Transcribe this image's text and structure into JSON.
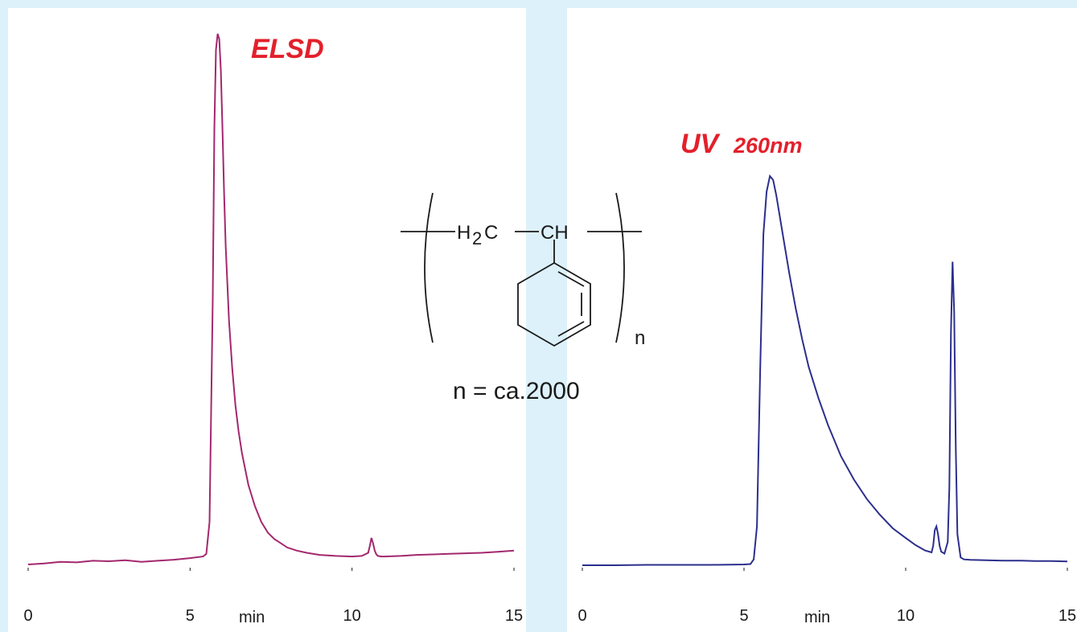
{
  "colors": {
    "background": "#ddf1fa",
    "panel": "#ffffff",
    "title": "#e3202b",
    "elsd_trace": "#a3286e",
    "uv_trace": "#2c2f8c",
    "axis": "#1a1a1a"
  },
  "structure": {
    "ch2": "H",
    "ch2_sub": "2",
    "ch2_c": "C",
    "ch": "CH",
    "repeat": "n",
    "note": "n = ca.2000"
  },
  "chart_data": [
    {
      "type": "line",
      "title": "ELSD",
      "subtitle": "",
      "xlabel": "min",
      "ylabel": "",
      "xlim": [
        0,
        15
      ],
      "ylim": [
        0,
        100
      ],
      "grid": false,
      "xticks": [
        "0",
        "5",
        "10",
        "15"
      ],
      "series": [
        {
          "color": "#a3286e",
          "x": [
            0,
            0.5,
            1,
            1.5,
            2,
            2.5,
            3,
            3.5,
            4,
            4.5,
            5,
            5.4,
            5.5,
            5.6,
            5.7,
            5.75,
            5.8,
            5.85,
            5.9,
            5.95,
            6.0,
            6.05,
            6.1,
            6.2,
            6.3,
            6.4,
            6.5,
            6.6,
            6.8,
            7.0,
            7.2,
            7.4,
            7.6,
            7.8,
            8.0,
            8.3,
            8.6,
            9.0,
            9.5,
            10.0,
            10.3,
            10.5,
            10.55,
            10.6,
            10.65,
            10.7,
            10.75,
            10.8,
            10.9,
            11.0,
            11.5,
            12,
            12.5,
            13,
            13.5,
            14,
            14.5,
            15
          ],
          "y": [
            0.0,
            0.2,
            0.5,
            0.4,
            0.7,
            0.6,
            0.8,
            0.5,
            0.7,
            0.9,
            1.2,
            1.5,
            2.0,
            8.0,
            50.0,
            82.0,
            97.0,
            100.0,
            99.0,
            93.0,
            82.0,
            70.0,
            60.0,
            46.0,
            37.0,
            30.0,
            25.0,
            21.0,
            15.0,
            11.0,
            8.0,
            6.0,
            4.8,
            4.0,
            3.2,
            2.6,
            2.2,
            1.8,
            1.6,
            1.5,
            1.6,
            2.2,
            3.5,
            5.0,
            4.0,
            2.6,
            1.9,
            1.6,
            1.5,
            1.5,
            1.6,
            1.8,
            1.9,
            2.0,
            2.1,
            2.2,
            2.4,
            2.6
          ]
        }
      ]
    },
    {
      "type": "line",
      "title": "UV",
      "subtitle": "260nm",
      "xlabel": "min",
      "ylabel": "",
      "xlim": [
        0,
        15
      ],
      "ylim": [
        0,
        100
      ],
      "grid": false,
      "xticks": [
        "0",
        "5",
        "10",
        "15"
      ],
      "series": [
        {
          "color": "#2c2f8c",
          "x": [
            0,
            1,
            2,
            3,
            4,
            5,
            5.2,
            5.3,
            5.4,
            5.5,
            5.6,
            5.7,
            5.8,
            5.9,
            6.0,
            6.2,
            6.4,
            6.6,
            6.8,
            7.0,
            7.3,
            7.6,
            8.0,
            8.4,
            8.8,
            9.2,
            9.6,
            10.0,
            10.3,
            10.6,
            10.8,
            10.85,
            10.9,
            10.95,
            11.0,
            11.05,
            11.1,
            11.2,
            11.3,
            11.35,
            11.4,
            11.45,
            11.5,
            11.55,
            11.6,
            11.7,
            11.8,
            12.0,
            12.5,
            13,
            13.5,
            14,
            14.5,
            15
          ],
          "y": [
            0.0,
            0.0,
            0.1,
            0.1,
            0.1,
            0.2,
            0.3,
            1.5,
            10.0,
            50.0,
            85.0,
            96.0,
            100.0,
            99.0,
            95.0,
            85.0,
            75.0,
            66.0,
            58.0,
            51.0,
            43.0,
            36.0,
            28.0,
            22.0,
            17.0,
            13.0,
            9.5,
            7.0,
            5.2,
            3.8,
            3.3,
            5.0,
            9.0,
            10.0,
            8.0,
            5.0,
            3.5,
            3.0,
            6.0,
            20.0,
            60.0,
            78.0,
            65.0,
            30.0,
            8.0,
            2.0,
            1.5,
            1.4,
            1.3,
            1.2,
            1.2,
            1.1,
            1.1,
            1.0
          ]
        }
      ]
    }
  ]
}
